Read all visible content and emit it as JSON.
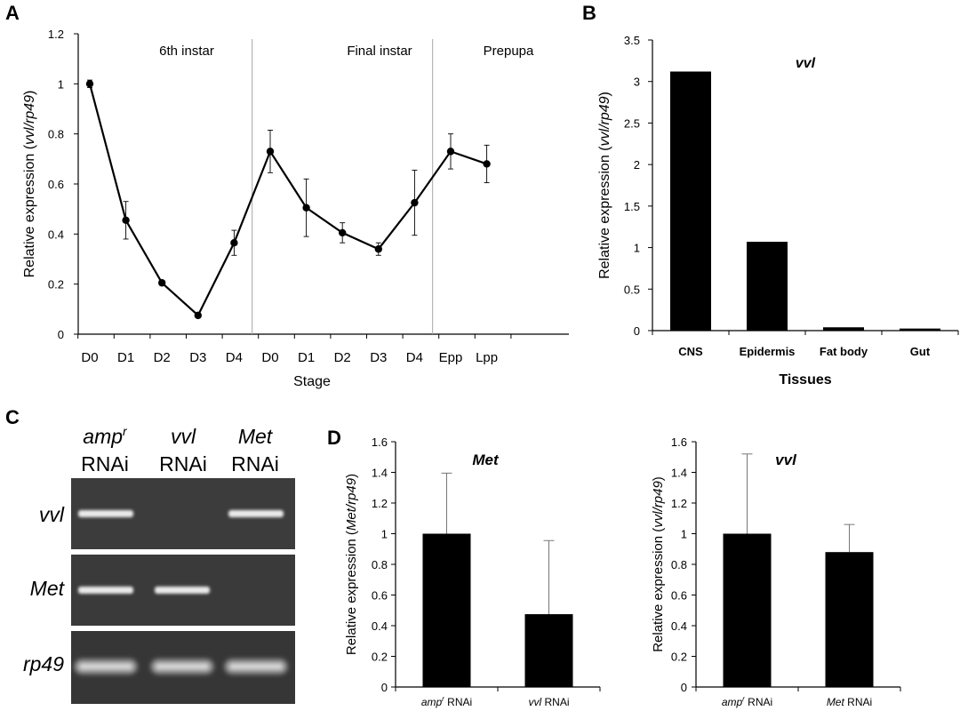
{
  "panels": {
    "a": "A",
    "b": "B",
    "c": "C",
    "d": "D"
  },
  "chart_data": [
    {
      "type": "line",
      "panel": "A",
      "ylabel": "Relative expression (vvl/rp49)",
      "ylabel_parts": [
        "Relative expression (",
        "vvl/rp49",
        ")"
      ],
      "xlabel": "Stage",
      "ylim": [
        0,
        1.2
      ],
      "yticks": [
        "0",
        "0.2",
        "0.4",
        "0.6",
        "0.8",
        "1",
        "1.2"
      ],
      "categories": [
        "D0",
        "D1",
        "D2",
        "D3",
        "D4",
        "D0",
        "D1",
        "D2",
        "D3",
        "D4",
        "Epp",
        "Lpp"
      ],
      "values": [
        1.0,
        0.455,
        0.205,
        0.075,
        0.365,
        0.73,
        0.505,
        0.405,
        0.34,
        0.525,
        0.73,
        0.68
      ],
      "errors": [
        0.015,
        0.075,
        0.01,
        0.005,
        0.05,
        0.085,
        0.115,
        0.04,
        0.025,
        0.13,
        0.07,
        0.075
      ],
      "regions": [
        "6th instar",
        "Final instar",
        "Prepupa"
      ],
      "dividers_after_index": [
        4.5,
        9.5
      ]
    },
    {
      "type": "bar",
      "panel": "B",
      "title": "vvl",
      "ylabel": "Relative expression (vvl/rp49)",
      "ylabel_parts": [
        "Relative expression (",
        "vvl/rp49",
        ")"
      ],
      "xlabel": "Tissues",
      "ylim": [
        0,
        3.5
      ],
      "yticks": [
        "0",
        "0.5",
        "1",
        "1.5",
        "2",
        "2.5",
        "3",
        "3.5"
      ],
      "categories": [
        "CNS",
        "Epidermis",
        "Fat body",
        "Gut"
      ],
      "values": [
        3.12,
        1.07,
        0.04,
        0.025
      ]
    },
    {
      "type": "bar",
      "panel": "D-left",
      "title": "Met",
      "ylabel": "Relative expression (Met/rp49)",
      "ylabel_parts": [
        "Relative expression (",
        "Met/rp49",
        ")"
      ],
      "ylim": [
        0,
        1.6
      ],
      "yticks": [
        "0",
        "0.2",
        "0.4",
        "0.6",
        "0.8",
        "1",
        "1.2",
        "1.4",
        "1.6"
      ],
      "categories": [
        {
          "it": "amp",
          "sup": "r",
          "rest": " RNAi"
        },
        {
          "it": "vvl",
          "sup": "",
          "rest": " RNAi"
        }
      ],
      "values": [
        1.0,
        0.475
      ],
      "errors": [
        0.395,
        0.48
      ]
    },
    {
      "type": "bar",
      "panel": "D-right",
      "title": "vvl",
      "ylabel": "Relative expression (vvl/rp49)",
      "ylabel_parts": [
        "Relative expression (",
        "vvl/rp49",
        ")"
      ],
      "ylim": [
        0,
        1.6
      ],
      "yticks": [
        "0",
        "0.2",
        "0.4",
        "0.6",
        "0.8",
        "1",
        "1.2",
        "1.4",
        "1.6"
      ],
      "categories": [
        {
          "it": "amp",
          "sup": "r",
          "rest": " RNAi"
        },
        {
          "it": "Met",
          "sup": "",
          "rest": " RNAi"
        }
      ],
      "values": [
        1.0,
        0.88
      ],
      "errors": [
        0.52,
        0.18
      ]
    }
  ],
  "gel": {
    "headers": [
      {
        "line1_it": "amp",
        "line1_sup": "r",
        "line2": "RNAi"
      },
      {
        "line1_it": "vvl",
        "line1_sup": "",
        "line2": "RNAi"
      },
      {
        "line1_it": "Met",
        "line1_sup": "",
        "line2": "RNAi"
      }
    ],
    "rows": [
      {
        "label": "vvl",
        "bands": [
          true,
          false,
          true
        ]
      },
      {
        "label": "Met",
        "bands": [
          true,
          true,
          false
        ]
      },
      {
        "label": "rp49",
        "bands": [
          true,
          true,
          true
        ]
      }
    ]
  }
}
